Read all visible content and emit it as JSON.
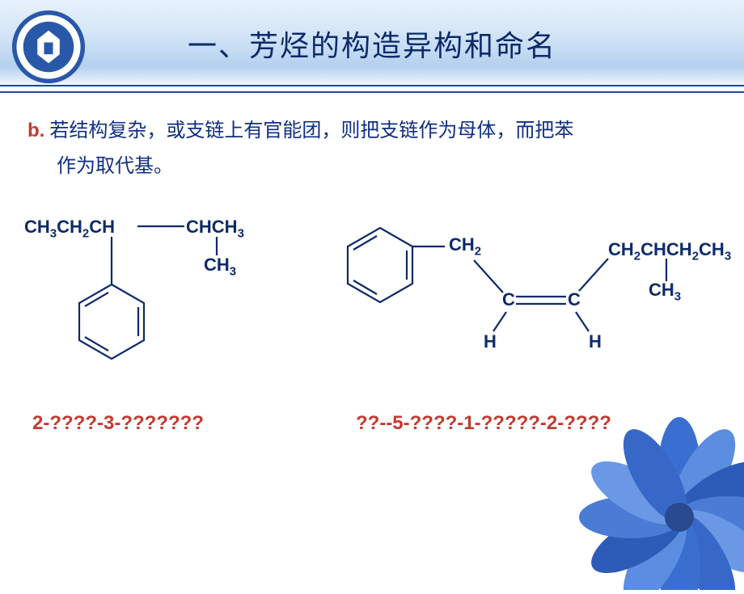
{
  "header": {
    "title": "一、芳烃的构造异构和命名",
    "band_gradient_top": "#e8f1fb",
    "band_gradient_bottom": "#ffffff",
    "line_color": "#1b4a9a",
    "logo_ring_color": "#2a58a8",
    "logo_crest_color": "#2a58a8",
    "logo_bg": "#ffffff"
  },
  "body": {
    "prefix": "b.",
    "line1": "若结构复杂，或支链上有官能团，则把支链作为母体，而把苯",
    "line2": "作为取代基。",
    "text_color": "#0f2f80",
    "prefix_color": "#c23a2e",
    "fontsize": 24
  },
  "structures": {
    "left": {
      "labels": {
        "top_left": "CH<sub>3</sub>CH<sub>2</sub>CH",
        "top_right": "CHCH<sub>3</sub>",
        "mid_right": "CH<sub>3</sub>"
      },
      "bond_color": "#0d2a6a",
      "label_color": "#0d2a6a",
      "label_fontsize": 22
    },
    "right": {
      "labels": {
        "ch2": "CH<sub>2</sub>",
        "c_left": "C",
        "c_right": "C",
        "h_left": "H",
        "h_right": "H",
        "chain": "CH<sub>2</sub>CHCH<sub>2</sub>CH<sub>3</sub>",
        "ch3": "CH<sub>3</sub>"
      },
      "bond_color": "#0d2a6a",
      "label_color": "#0d2a6a",
      "label_fontsize": 22
    }
  },
  "answers": {
    "left": "2-????-3-???????",
    "right": "??--5-????-1-?????-2-????",
    "color": "#c23a2e",
    "fontsize": 24
  },
  "flower": {
    "petal_colors": [
      "#3a6fd1",
      "#5b8de0",
      "#2d5bb8",
      "#4a7cd6",
      "#6a98e4",
      "#3868c7"
    ],
    "center_color": "#2a4a8f"
  }
}
